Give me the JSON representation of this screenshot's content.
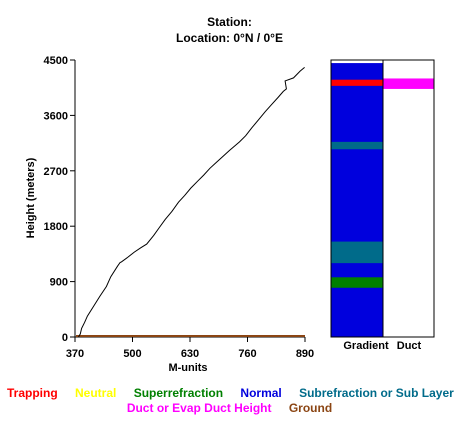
{
  "title": {
    "line1": "Station:",
    "line2": "Location:   0°N /   0°E"
  },
  "colors": {
    "trapping": "#ff0000",
    "neutral": "#ffff00",
    "superrefraction": "#008000",
    "normal": "#0000dd",
    "subrefraction": "#006b8a",
    "duct": "#ff00ff",
    "ground": "#8b4513",
    "profile_line": "#000000"
  },
  "legend": {
    "trapping": "Trapping",
    "neutral": "Neutral",
    "superrefraction": "Superrefraction",
    "normal": "Normal",
    "subrefraction": "Subrefraction or Sub Layer",
    "duct_height": "Duct or Evap Duct Height",
    "ground": "Ground"
  },
  "panels": {
    "gradient_label": "Gradient",
    "duct_label": "Duct"
  },
  "chart_data": {
    "type": "line",
    "title": "",
    "xlabel": "M-units",
    "ylabel": "Height (meters)",
    "xlim": [
      370,
      890
    ],
    "ylim": [
      0,
      4500
    ],
    "xticks": [
      "370",
      "500",
      "630",
      "760",
      "890"
    ],
    "yticks": [
      "0",
      "900",
      "1800",
      "2700",
      "3600",
      "4500"
    ],
    "grid": false,
    "series": [
      {
        "x": [
          378,
          382,
          385,
          392,
          398,
          413,
          426,
          441,
          451,
          466,
          472,
          475,
          490,
          504,
          519,
          532,
          548,
          560,
          574,
          589,
          604,
          618,
          632,
          647,
          661,
          675,
          690,
          704,
          719,
          734,
          742,
          756,
          770,
          785,
          800,
          815,
          829,
          841,
          848,
          845,
          864,
          879,
          889
        ],
        "y": [
          0,
          50,
          140,
          240,
          340,
          510,
          660,
          820,
          980,
          1150,
          1210,
          1220,
          1300,
          1380,
          1450,
          1510,
          1650,
          1770,
          1910,
          2040,
          2190,
          2300,
          2420,
          2530,
          2630,
          2740,
          2840,
          2930,
          3030,
          3120,
          3170,
          3270,
          3400,
          3530,
          3660,
          3780,
          3890,
          3990,
          4030,
          4160,
          4210,
          4320,
          4380
        ]
      }
    ],
    "ground_level_m": 0,
    "gradient_bands": [
      {
        "class": "normal",
        "from": 0,
        "to": 4450
      },
      {
        "class": "superrefraction",
        "from": 800,
        "to": 970
      },
      {
        "class": "subrefraction",
        "from": 1200,
        "to": 1550
      },
      {
        "class": "subrefraction",
        "from": 3050,
        "to": 3170
      },
      {
        "class": "trapping",
        "from": 4080,
        "to": 4180
      }
    ],
    "duct_bands": [
      {
        "class": "duct",
        "from": 4030,
        "to": 4200
      }
    ]
  }
}
